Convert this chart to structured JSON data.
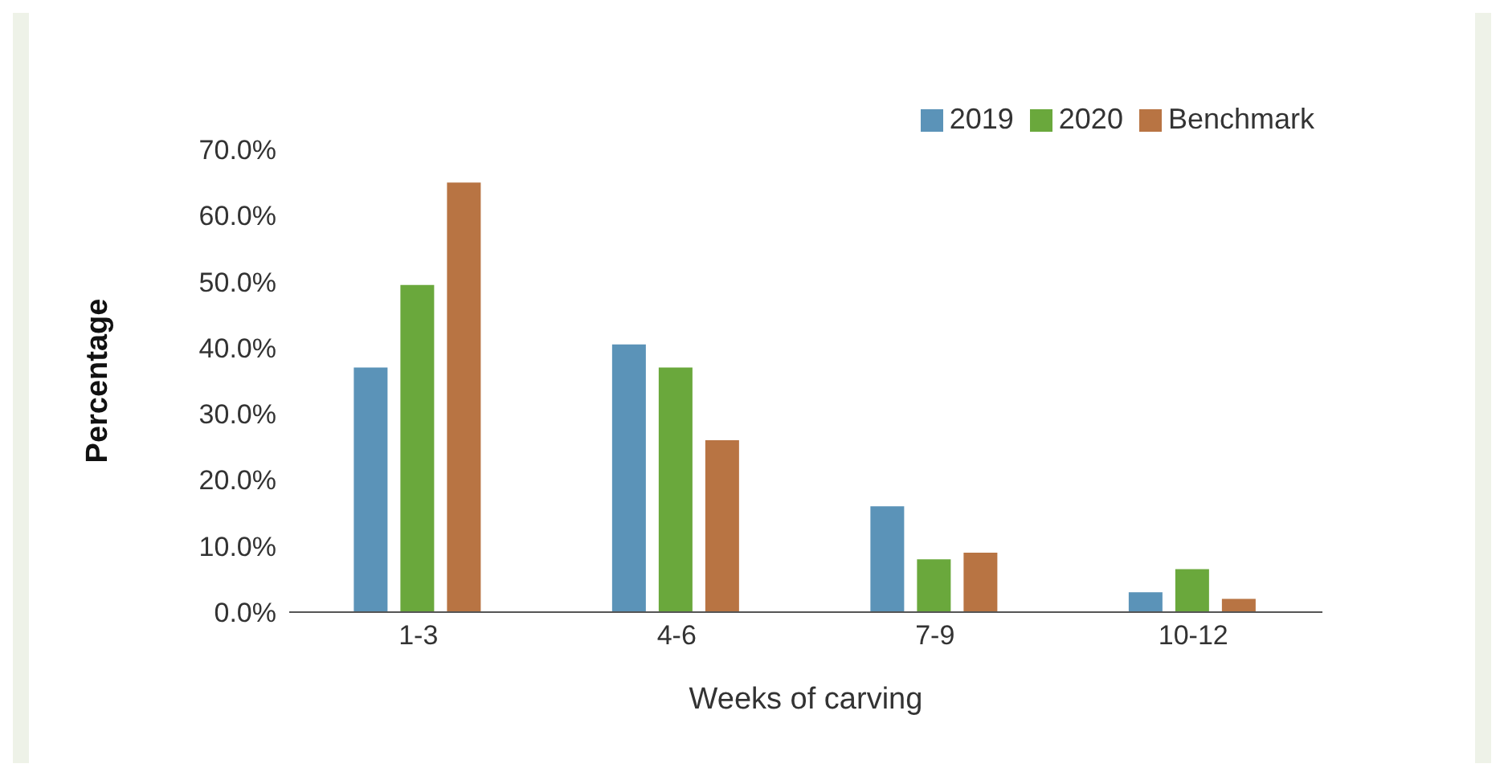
{
  "chart_data": {
    "type": "bar",
    "xlabel": "Weeks of carving",
    "ylabel": "Percentage",
    "categories": [
      "1-3",
      "4-6",
      "7-9",
      "10-12"
    ],
    "series": [
      {
        "name": "2019",
        "color": "#5b93b8",
        "values": [
          37,
          40.5,
          16,
          3
        ]
      },
      {
        "name": "2020",
        "color": "#6aa83c",
        "values": [
          49.5,
          37,
          8,
          6.5
        ]
      },
      {
        "name": "Benchmark",
        "color": "#b87443",
        "values": [
          65,
          26,
          9,
          2
        ]
      }
    ],
    "ylim": [
      0,
      70
    ],
    "yticks": [
      {
        "value": 0,
        "label": "0.0%"
      },
      {
        "value": 10,
        "label": "10.0%"
      },
      {
        "value": 20,
        "label": "20.0%"
      },
      {
        "value": 30,
        "label": "30.0%"
      },
      {
        "value": 40,
        "label": "40.0%"
      },
      {
        "value": 50,
        "label": "50.0%"
      },
      {
        "value": 60,
        "label": "60.0%"
      },
      {
        "value": 70,
        "label": "70.0%"
      }
    ],
    "grid": false,
    "legend": "top right"
  }
}
